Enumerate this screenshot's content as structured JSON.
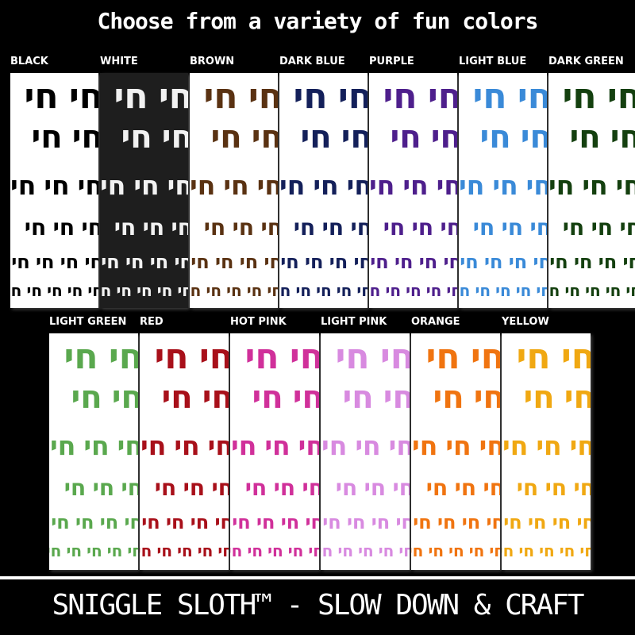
{
  "header": {
    "title": "Choose from a variety of fun colors"
  },
  "glyph": "חי",
  "rows": [
    [
      {
        "name": "BLACK",
        "color": "#000000",
        "background": "#ffffff"
      },
      {
        "name": "WHITE",
        "color": "#f2f2f2",
        "background": "#1e1e1e"
      },
      {
        "name": "BROWN",
        "color": "#5a3212",
        "background": "#ffffff"
      },
      {
        "name": "DARK BLUE",
        "color": "#14205a",
        "background": "#ffffff"
      },
      {
        "name": "PURPLE",
        "color": "#4e1f8c",
        "background": "#ffffff"
      },
      {
        "name": "LIGHT BLUE",
        "color": "#3a8ad8",
        "background": "#ffffff"
      },
      {
        "name": "DARK GREEN",
        "color": "#14400f",
        "background": "#ffffff"
      }
    ],
    [
      {
        "name": "LIGHT GREEN",
        "color": "#5aa84e",
        "background": "#ffffff"
      },
      {
        "name": "RED",
        "color": "#a8101a",
        "background": "#ffffff"
      },
      {
        "name": "HOT PINK",
        "color": "#d0309a",
        "background": "#ffffff"
      },
      {
        "name": "LIGHT PINK",
        "color": "#d88ae0",
        "background": "#ffffff"
      },
      {
        "name": "ORANGE",
        "color": "#f07410",
        "background": "#ffffff"
      },
      {
        "name": "YELLOW",
        "color": "#f0a812",
        "background": "#ffffff"
      }
    ]
  ],
  "footer": {
    "text": "SNIGGLE SLOTH™ - SLOW DOWN & CRAFT"
  }
}
